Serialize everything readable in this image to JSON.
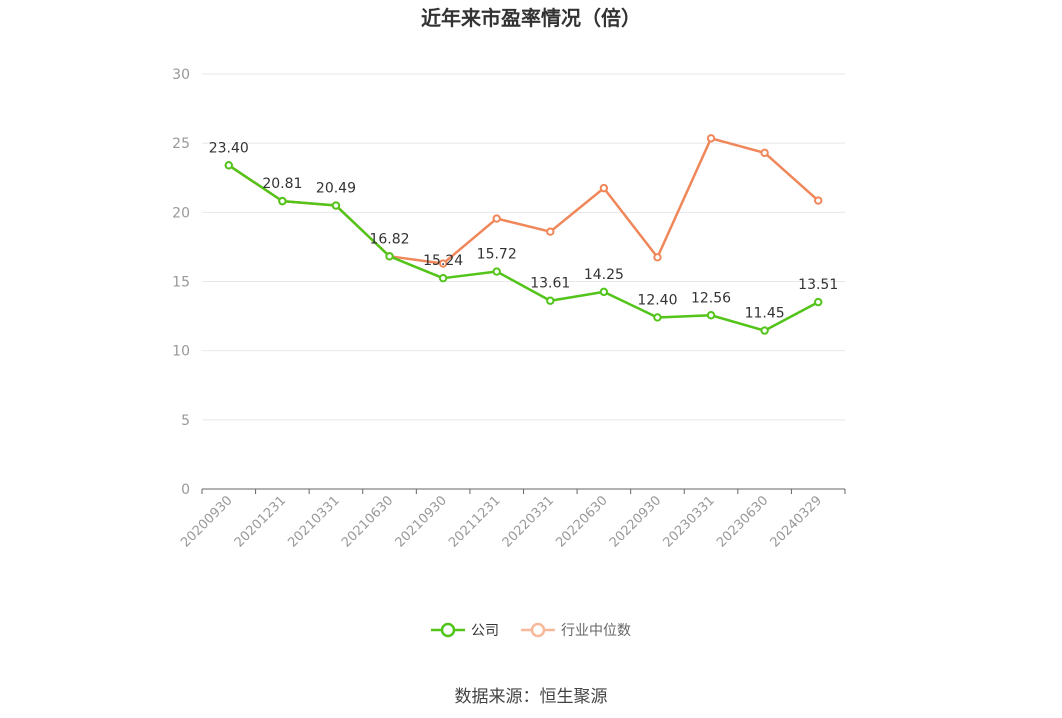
{
  "chart_data": {
    "type": "line",
    "title": "近年来市盈率情况（倍）",
    "categories": [
      "20200930",
      "20201231",
      "20210331",
      "20210630",
      "20210930",
      "20211231",
      "20220331",
      "20220630",
      "20220930",
      "20230331",
      "20230630",
      "20240329"
    ],
    "series": [
      {
        "name": "公司",
        "color": "#52c41a",
        "values": [
          23.4,
          20.81,
          20.49,
          16.82,
          15.24,
          15.72,
          13.61,
          14.25,
          12.4,
          12.56,
          11.45,
          13.51
        ],
        "labels": [
          "23.40",
          "20.81",
          "20.49",
          "16.82",
          "15.24",
          "15.72",
          "13.61",
          "14.25",
          "12.40",
          "12.56",
          "11.45",
          "13.51"
        ]
      },
      {
        "name": "行业中位数",
        "color": "#f0875a",
        "values": [
          23.4,
          20.81,
          20.49,
          16.82,
          16.3,
          19.55,
          18.6,
          21.75,
          16.75,
          25.35,
          24.3,
          20.85
        ]
      }
    ],
    "ylim": [
      0,
      30
    ],
    "yticks": [
      "0",
      "5",
      "10",
      "15",
      "20",
      "25",
      "30"
    ],
    "grid": true,
    "legend": "bottom"
  },
  "source": "数据来源：恒生聚源"
}
